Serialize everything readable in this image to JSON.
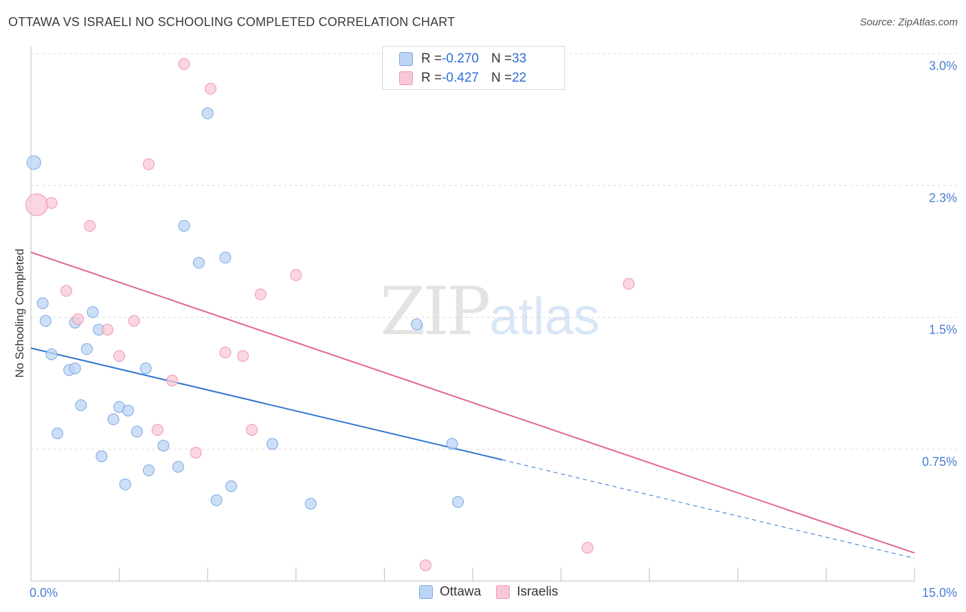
{
  "header": {
    "title": "OTTAWA VS ISRAELI NO SCHOOLING COMPLETED CORRELATION CHART",
    "source": "Source: ZipAtlas.com"
  },
  "watermark": {
    "zip": "ZIP",
    "atlas": "atlas"
  },
  "legend": {
    "rows": [
      {
        "r_label": "R = ",
        "r_value": "-0.270",
        "n_label": "N = ",
        "n_value": "33"
      },
      {
        "r_label": "R = ",
        "r_value": "-0.427",
        "n_label": "N = ",
        "n_value": "22"
      }
    ]
  },
  "bottom_legend": {
    "ottawa": "Ottawa",
    "israelis": "Israelis"
  },
  "colors": {
    "ottawa_fill": "#bcd4f4",
    "ottawa_stroke": "#7aa7e2",
    "ottawa_line": "#2f74d0",
    "israelis_fill": "#f9c8d6",
    "israelis_stroke": "#ee96b0",
    "israelis_line": "#e06690",
    "grid": "#d9d9d9",
    "tick_text": "#4a7fd0"
  },
  "chart_data": {
    "type": "scatter",
    "title": "OTTAWA VS ISRAELI NO SCHOOLING COMPLETED CORRELATION CHART",
    "ylabel": "No Schooling Completed",
    "xlabel": "",
    "xlim": [
      0,
      15
    ],
    "ylim": [
      0,
      3.0
    ],
    "x_tick_labels": [
      {
        "value": 0,
        "label": "0.0%"
      },
      {
        "value": 15,
        "label": "15.0%"
      }
    ],
    "y_tick_labels": [
      {
        "value": 0.75,
        "label": "0.75%"
      },
      {
        "value": 1.5,
        "label": "1.5%"
      },
      {
        "value": 2.25,
        "label": "2.3%"
      },
      {
        "value": 3.0,
        "label": "3.0%"
      }
    ],
    "grid": "horizontal dashed",
    "series": [
      {
        "name": "Ottawa",
        "color": "#7aa7e2",
        "points": [
          [
            0.05,
            2.38,
            10
          ],
          [
            3.0,
            2.66,
            8
          ],
          [
            2.6,
            2.02,
            8
          ],
          [
            3.3,
            1.84,
            8
          ],
          [
            2.85,
            1.81,
            8
          ],
          [
            0.2,
            1.58,
            8
          ],
          [
            0.25,
            1.48,
            8
          ],
          [
            1.05,
            1.53,
            8
          ],
          [
            0.75,
            1.47,
            8
          ],
          [
            1.15,
            1.43,
            8
          ],
          [
            6.55,
            1.46,
            8
          ],
          [
            0.35,
            1.29,
            8
          ],
          [
            0.95,
            1.32,
            8
          ],
          [
            0.65,
            1.2,
            8
          ],
          [
            0.75,
            1.21,
            8
          ],
          [
            1.95,
            1.21,
            8
          ],
          [
            0.85,
            1.0,
            8
          ],
          [
            1.5,
            0.99,
            8
          ],
          [
            1.65,
            0.97,
            8
          ],
          [
            1.4,
            0.92,
            8
          ],
          [
            0.45,
            0.84,
            8
          ],
          [
            1.8,
            0.85,
            8
          ],
          [
            2.25,
            0.77,
            8
          ],
          [
            4.1,
            0.78,
            8
          ],
          [
            7.15,
            0.78,
            8
          ],
          [
            1.2,
            0.71,
            8
          ],
          [
            2.0,
            0.63,
            8
          ],
          [
            2.5,
            0.65,
            8
          ],
          [
            1.6,
            0.55,
            8
          ],
          [
            3.4,
            0.54,
            8
          ],
          [
            3.15,
            0.46,
            8
          ],
          [
            4.75,
            0.44,
            8
          ],
          [
            7.25,
            0.45,
            8
          ]
        ],
        "trend": {
          "x": [
            0,
            8.0
          ],
          "y": [
            1.325,
            0.69
          ],
          "dashed_x": [
            8.0,
            15
          ],
          "dashed_y": [
            0.69,
            0.13
          ]
        }
      },
      {
        "name": "Israelis",
        "color": "#ee96b0",
        "points": [
          [
            2.6,
            2.94,
            8
          ],
          [
            3.05,
            2.8,
            8
          ],
          [
            2.0,
            2.37,
            8
          ],
          [
            0.1,
            2.14,
            16
          ],
          [
            0.35,
            2.15,
            8
          ],
          [
            1.0,
            2.02,
            8
          ],
          [
            0.6,
            1.65,
            8
          ],
          [
            4.5,
            1.74,
            8
          ],
          [
            3.9,
            1.63,
            8
          ],
          [
            10.15,
            1.69,
            8
          ],
          [
            0.8,
            1.49,
            8
          ],
          [
            1.3,
            1.43,
            8
          ],
          [
            1.75,
            1.48,
            8
          ],
          [
            3.3,
            1.3,
            8
          ],
          [
            3.6,
            1.28,
            8
          ],
          [
            1.5,
            1.28,
            8
          ],
          [
            2.4,
            1.14,
            8
          ],
          [
            2.15,
            0.86,
            8
          ],
          [
            3.75,
            0.86,
            8
          ],
          [
            2.8,
            0.73,
            8
          ],
          [
            9.45,
            0.19,
            8
          ],
          [
            6.7,
            0.09,
            8
          ]
        ],
        "trend": {
          "x": [
            0,
            15
          ],
          "y": [
            1.87,
            0.16
          ]
        }
      }
    ]
  }
}
